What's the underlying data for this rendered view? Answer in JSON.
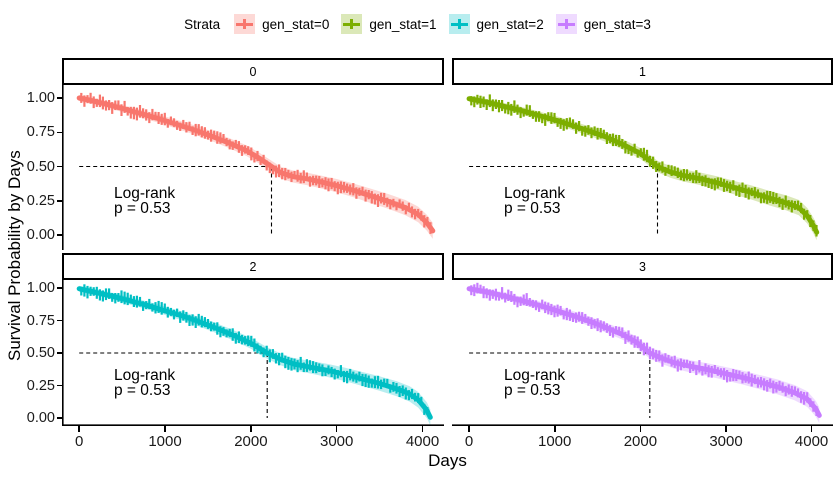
{
  "legend": {
    "title": "Strata",
    "items": [
      {
        "label": "gen_stat=0",
        "color": "#F8766D"
      },
      {
        "label": "gen_stat=1",
        "color": "#7CAE00"
      },
      {
        "label": "gen_stat=2",
        "color": "#00BFC4"
      },
      {
        "label": "gen_stat=3",
        "color": "#C77CFF"
      }
    ]
  },
  "chart_data": {
    "type": "line",
    "subtype": "kaplan-meier-survival",
    "title": "",
    "xlabel": "Days",
    "ylabel": "Survival Probability by Days",
    "x_ticks": [
      0,
      1000,
      2000,
      3000,
      4000
    ],
    "y_ticks": [
      1.0,
      0.75,
      0.5,
      0.25,
      0.0
    ],
    "y_tick_labels": [
      "1.00",
      "0.75",
      "0.50",
      "0.25",
      "0.00"
    ],
    "xlim": [
      -200,
      4250
    ],
    "ylim": [
      0,
      1
    ],
    "grid": false,
    "legend_title": "Strata",
    "legend_position": "top",
    "facets": [
      {
        "strip": "0",
        "series": "gen_stat=0",
        "color": "#F8766D",
        "median_day": 2240,
        "median_surv": 0.5,
        "annotation_line1": "Log-rank",
        "annotation_line2": "p = 0.53",
        "points": [
          [
            0,
            1.0
          ],
          [
            150,
            0.98
          ],
          [
            350,
            0.95
          ],
          [
            550,
            0.915
          ],
          [
            750,
            0.88
          ],
          [
            950,
            0.845
          ],
          [
            1150,
            0.805
          ],
          [
            1350,
            0.765
          ],
          [
            1550,
            0.72
          ],
          [
            1750,
            0.67
          ],
          [
            1950,
            0.615
          ],
          [
            2100,
            0.56
          ],
          [
            2240,
            0.5
          ],
          [
            2350,
            0.455
          ],
          [
            2500,
            0.425
          ],
          [
            2650,
            0.41
          ],
          [
            2800,
            0.39
          ],
          [
            3000,
            0.36
          ],
          [
            3200,
            0.325
          ],
          [
            3400,
            0.285
          ],
          [
            3600,
            0.245
          ],
          [
            3800,
            0.2
          ],
          [
            3950,
            0.15
          ],
          [
            4050,
            0.09
          ],
          [
            4120,
            0.03
          ]
        ]
      },
      {
        "strip": "1",
        "series": "gen_stat=1",
        "color": "#7CAE00",
        "median_day": 2200,
        "median_surv": 0.5,
        "annotation_line1": "Log-rank",
        "annotation_line2": "p = 0.53",
        "points": [
          [
            0,
            0.995
          ],
          [
            200,
            0.97
          ],
          [
            400,
            0.94
          ],
          [
            600,
            0.91
          ],
          [
            800,
            0.875
          ],
          [
            1000,
            0.84
          ],
          [
            1200,
            0.8
          ],
          [
            1400,
            0.76
          ],
          [
            1600,
            0.715
          ],
          [
            1800,
            0.66
          ],
          [
            2000,
            0.595
          ],
          [
            2200,
            0.5
          ],
          [
            2350,
            0.46
          ],
          [
            2500,
            0.435
          ],
          [
            2700,
            0.41
          ],
          [
            2900,
            0.38
          ],
          [
            3100,
            0.345
          ],
          [
            3300,
            0.31
          ],
          [
            3500,
            0.27
          ],
          [
            3700,
            0.235
          ],
          [
            3850,
            0.2
          ],
          [
            3950,
            0.14
          ],
          [
            4020,
            0.07
          ],
          [
            4060,
            0.02
          ]
        ]
      },
      {
        "strip": "2",
        "series": "gen_stat=2",
        "color": "#00BFC4",
        "median_day": 2190,
        "median_surv": 0.5,
        "annotation_line1": "Log-rank",
        "annotation_line2": "p = 0.53",
        "points": [
          [
            0,
            0.995
          ],
          [
            200,
            0.965
          ],
          [
            400,
            0.935
          ],
          [
            600,
            0.9
          ],
          [
            800,
            0.865
          ],
          [
            1000,
            0.825
          ],
          [
            1200,
            0.785
          ],
          [
            1400,
            0.74
          ],
          [
            1600,
            0.69
          ],
          [
            1800,
            0.635
          ],
          [
            2000,
            0.575
          ],
          [
            2190,
            0.5
          ],
          [
            2350,
            0.45
          ],
          [
            2500,
            0.415
          ],
          [
            2700,
            0.39
          ],
          [
            2900,
            0.365
          ],
          [
            3100,
            0.335
          ],
          [
            3300,
            0.3
          ],
          [
            3500,
            0.265
          ],
          [
            3700,
            0.225
          ],
          [
            3850,
            0.185
          ],
          [
            3950,
            0.14
          ],
          [
            4050,
            0.06
          ],
          [
            4090,
            0.005
          ]
        ]
      },
      {
        "strip": "3",
        "series": "gen_stat=3",
        "color": "#C77CFF",
        "median_day": 2110,
        "median_surv": 0.5,
        "annotation_line1": "Log-rank",
        "annotation_line2": "p = 0.53",
        "points": [
          [
            0,
            0.995
          ],
          [
            200,
            0.97
          ],
          [
            400,
            0.94
          ],
          [
            600,
            0.905
          ],
          [
            800,
            0.87
          ],
          [
            1000,
            0.83
          ],
          [
            1200,
            0.79
          ],
          [
            1400,
            0.745
          ],
          [
            1600,
            0.695
          ],
          [
            1800,
            0.64
          ],
          [
            1950,
            0.585
          ],
          [
            2110,
            0.5
          ],
          [
            2250,
            0.46
          ],
          [
            2400,
            0.425
          ],
          [
            2600,
            0.395
          ],
          [
            2800,
            0.37
          ],
          [
            3000,
            0.34
          ],
          [
            3200,
            0.31
          ],
          [
            3400,
            0.275
          ],
          [
            3600,
            0.24
          ],
          [
            3800,
            0.195
          ],
          [
            3950,
            0.145
          ],
          [
            4050,
            0.07
          ],
          [
            4090,
            0.02
          ]
        ]
      }
    ]
  }
}
